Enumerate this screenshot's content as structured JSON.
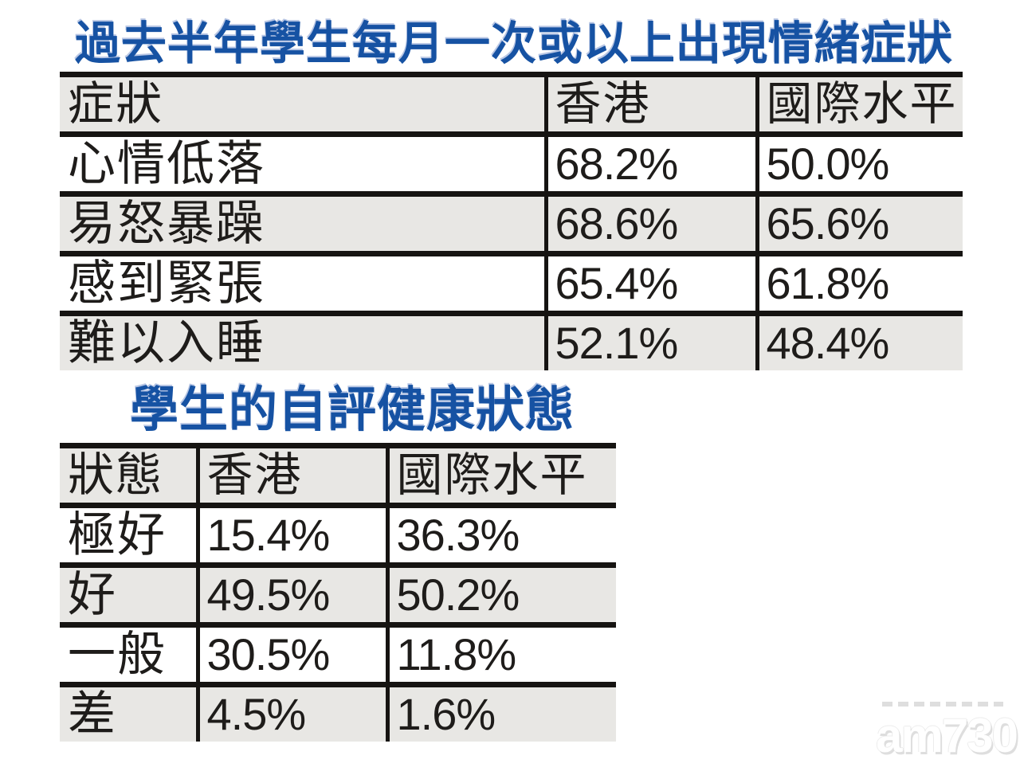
{
  "chart_data": [
    {
      "type": "table",
      "title": "過去半年學生每月一次或以上出現情緒症狀",
      "columns": [
        "症狀",
        "香港",
        "國際水平"
      ],
      "rows": [
        [
          "心情低落",
          "68.2%",
          "50.0%"
        ],
        [
          "易怒暴躁",
          "68.6%",
          "65.6%"
        ],
        [
          "感到緊張",
          "65.4%",
          "61.8%"
        ],
        [
          "難以入睡",
          "52.1%",
          "48.4%"
        ]
      ]
    },
    {
      "type": "table",
      "title": "學生的自評健康狀態",
      "columns": [
        "狀態",
        "香港",
        "國際水平"
      ],
      "rows": [
        [
          "極好",
          "15.4%",
          "36.3%"
        ],
        [
          "好",
          "49.5%",
          "50.2%"
        ],
        [
          "一般",
          "30.5%",
          "11.8%"
        ],
        [
          "差",
          "4.5%",
          "1.6%"
        ]
      ]
    }
  ],
  "watermark": {
    "text": "am730"
  },
  "colors": {
    "title_blue": "#1652a3",
    "row_gray": "#e8e7e4",
    "border_black": "#161412",
    "text_dark": "#1e1c1a",
    "watermark_gray": "#dedede"
  }
}
